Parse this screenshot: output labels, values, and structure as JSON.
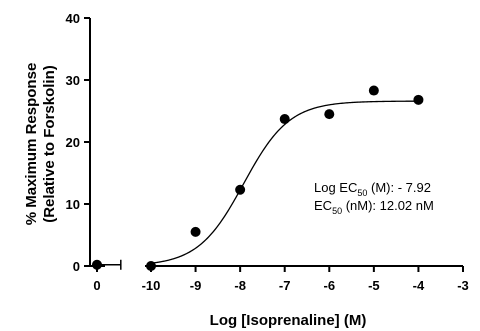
{
  "chart_data": {
    "type": "scatter",
    "xlabel": "Log [Isoprenaline] (M)",
    "ylabel_line1": "% Maximum Response",
    "ylabel_line2": "(Relative to Forskolin)",
    "y_ticks": [
      "0",
      "10",
      "20",
      "30",
      "40"
    ],
    "y_tick_values": [
      0,
      10,
      20,
      30,
      40
    ],
    "x_break_ticks": [
      {
        "value": 0,
        "label": "0"
      }
    ],
    "x_ticks": [
      {
        "value": -10,
        "label": "-10"
      },
      {
        "value": -9,
        "label": "-9"
      },
      {
        "value": -8,
        "label": "-8"
      },
      {
        "value": -7,
        "label": "-7"
      },
      {
        "value": -6,
        "label": "-6"
      },
      {
        "value": -5,
        "label": "-5"
      },
      {
        "value": -4,
        "label": "-4"
      },
      {
        "value": -3,
        "label": "-3"
      }
    ],
    "ylim": [
      0,
      40
    ],
    "xlim": [
      -10,
      -3
    ],
    "axis_break": true,
    "points": [
      {
        "x": 0,
        "y": 0.2,
        "xerr": 0.7,
        "on_break_segment": true
      },
      {
        "x": -10,
        "y": 0
      },
      {
        "x": -9,
        "y": 5.5
      },
      {
        "x": -8,
        "y": 12.3
      },
      {
        "x": -7,
        "y": 23.7
      },
      {
        "x": -6,
        "y": 24.5
      },
      {
        "x": -5,
        "y": 28.3
      },
      {
        "x": -4,
        "y": 26.8
      }
    ],
    "fit": {
      "model": "sigmoidal dose-response",
      "bottom": 0,
      "top": 26.6,
      "log_ec50": -7.92,
      "hill": 0.85,
      "x_range": [
        -10,
        -4
      ]
    },
    "annotation": {
      "line1_prefix": "Log EC",
      "line1_sub": "50",
      "line1_suffix": " (M): - 7.92",
      "line2_prefix": "EC",
      "line2_sub": "50",
      "line2_suffix": " (nM): 12.02 nM"
    },
    "grid": false,
    "legend": "none"
  }
}
